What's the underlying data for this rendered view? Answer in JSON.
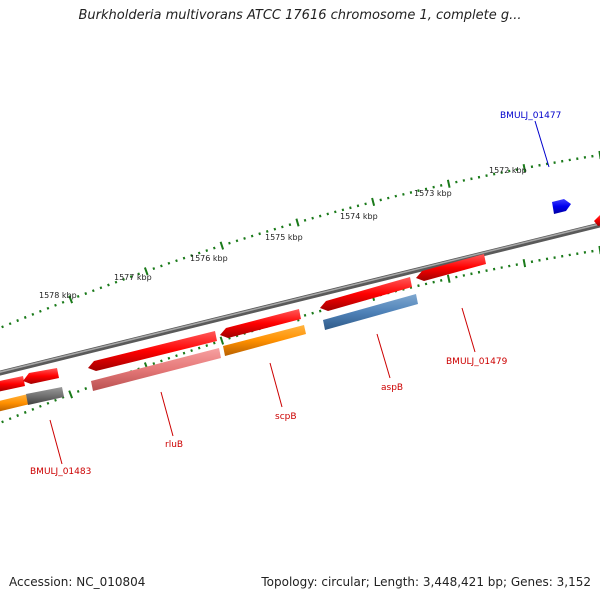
{
  "title": "Burkholderia multivorans ATCC 17616 chromosome 1, complete g...",
  "footer": {
    "accession": "Accession: NC_010804",
    "topology": "Topology: circular; Length: 3,448,421 bp; Genes: 3,152"
  },
  "colors": {
    "backbone": "#8a8a8a",
    "tick": "#1a7a1a",
    "label_red": "#cc0000",
    "label_blue": "#0000cc"
  },
  "scale_labels": [
    {
      "text": "1578 kbp"
    },
    {
      "text": "1577 kbp"
    },
    {
      "text": "1576 kbp"
    },
    {
      "text": "1575 kbp"
    },
    {
      "text": "1574 kbp"
    },
    {
      "text": "1573 kbp"
    },
    {
      "text": "1572 kbp"
    }
  ],
  "gene_labels": [
    {
      "text": "BMULJ_01477",
      "color": "blue"
    },
    {
      "text": "BMULJ_01479",
      "color": "red"
    },
    {
      "text": "aspB",
      "color": "red"
    },
    {
      "text": "scpB",
      "color": "red"
    },
    {
      "text": "rluB",
      "color": "red"
    },
    {
      "text": "BMULJ_01483",
      "color": "red"
    }
  ]
}
